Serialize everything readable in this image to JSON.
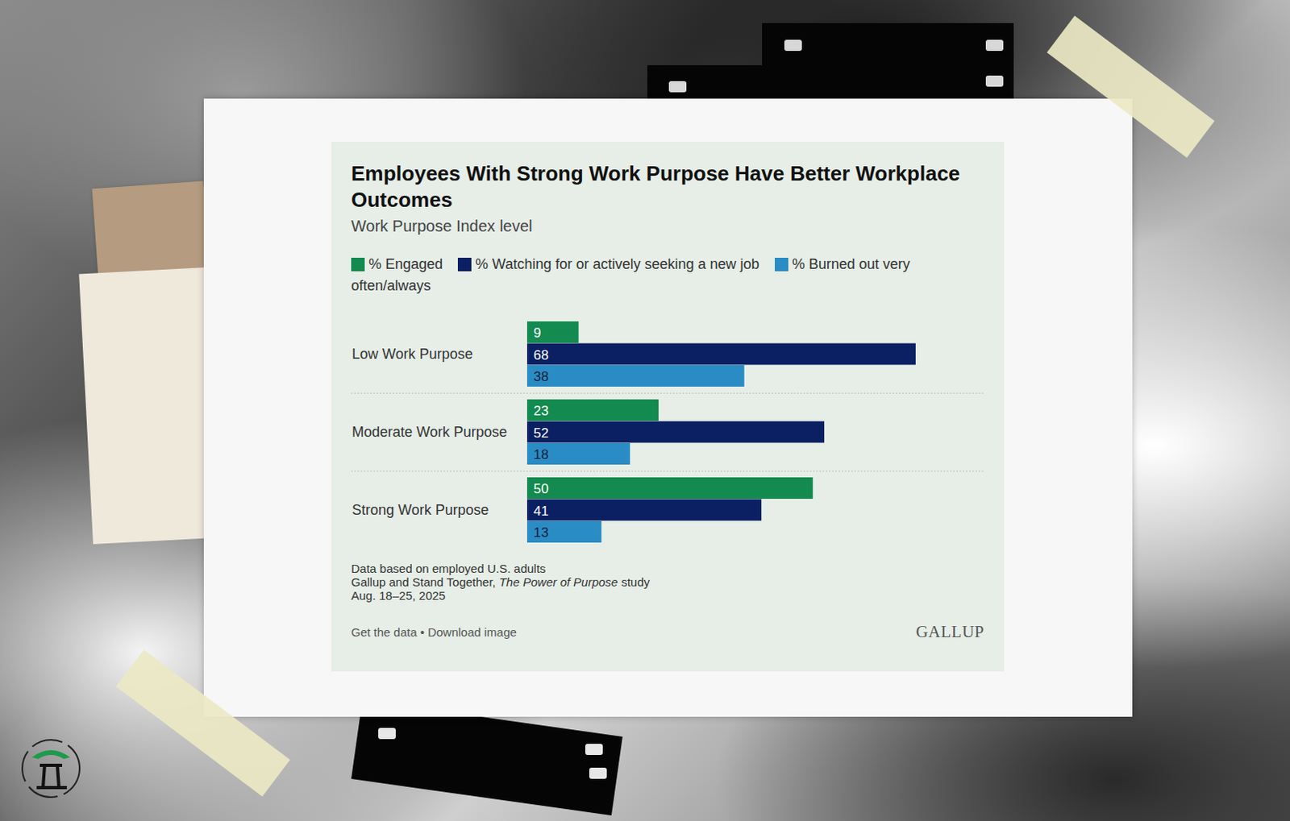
{
  "chart_data": {
    "type": "bar",
    "orientation": "horizontal",
    "title": "Employees With Strong Work Purpose Have Better Workplace Outcomes",
    "subtitle": "Work Purpose Index level",
    "categories": [
      "Low Work Purpose",
      "Moderate Work Purpose",
      "Strong Work Purpose"
    ],
    "series": [
      {
        "name": "% Engaged",
        "color": "#138a4f",
        "values": [
          9,
          23,
          50
        ]
      },
      {
        "name": "% Watching for or actively seeking a new job",
        "color": "#0b1f63",
        "values": [
          68,
          52,
          41
        ]
      },
      {
        "name": "% Burned out very often/always",
        "color": "#2a8cc4",
        "values": [
          38,
          18,
          13
        ]
      }
    ],
    "xlim": [
      0,
      80
    ],
    "data_labels": true,
    "tick_labels": false,
    "legend": "top",
    "notes": [
      "Data based on employed U.S. adults"
    ],
    "source": {
      "before": "Gallup and Stand Together,",
      "title": "The Power of Purpose",
      "after": "study"
    },
    "date": "Aug. 18–25, 2025",
    "links": "Get the data • Download image",
    "brand": "GALLUP"
  }
}
